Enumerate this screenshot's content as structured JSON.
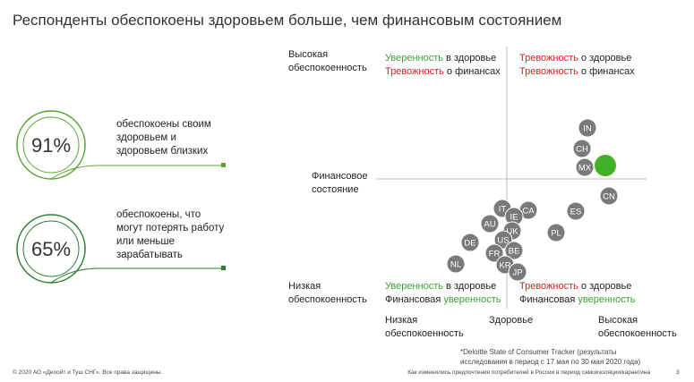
{
  "title": "Респонденты обеспокоены здоровьем больше, чем финансовым состоянием",
  "stats": [
    {
      "value": "91%",
      "lines": [
        "обеспокоены своим",
        "здоровьем и",
        "здоровьем близких"
      ]
    },
    {
      "value": "65%",
      "lines": [
        "обеспокоены, что",
        "могут потерять работу",
        "или меньше",
        "зарабатывать"
      ]
    }
  ],
  "axis_labels": [
    {
      "color": "#e31b23",
      "lines": [
        "Высокая",
        "обеспокоенность"
      ]
    },
    {
      "color": "#3aa335",
      "lines": [
        "Низкая",
        "обеспокоенность"
      ]
    },
    {
      "color": "#222222",
      "lines": [
        "Финансовое",
        "состояние"
      ]
    },
    {
      "color": "#3aa335",
      "lines": [
        "Низкая",
        "обеспокоенность"
      ]
    },
    {
      "color": "#222222",
      "lines": [
        "Здоровье"
      ]
    },
    {
      "color": "#e31b23",
      "lines": [
        "Высокая",
        "обеспокоенность"
      ]
    }
  ],
  "quadrants": [
    {
      "lines": [
        [
          {
            "text": "Уверенность",
            "color": "#3aa335"
          },
          {
            "text": " в здоровье",
            "color": "#222222"
          }
        ],
        [
          {
            "text": "Тревожность",
            "color": "#e31b23"
          },
          {
            "text": " о финансах",
            "color": "#222222"
          }
        ]
      ]
    },
    {
      "lines": [
        [
          {
            "text": "Тревожность",
            "color": "#e31b23"
          },
          {
            "text": " о здоровье",
            "color": "#222222"
          }
        ],
        [
          {
            "text": "Тревожность",
            "color": "#e31b23"
          },
          {
            "text": " о финансах",
            "color": "#222222"
          }
        ]
      ]
    },
    {
      "lines": [
        [
          {
            "text": "Уверенность",
            "color": "#3aa335"
          },
          {
            "text": " в здоровье",
            "color": "#222222"
          }
        ],
        [
          {
            "text": "Финансовая ",
            "color": "#222222"
          },
          {
            "text": "уверенность",
            "color": "#3aa335"
          }
        ]
      ]
    },
    {
      "lines": [
        [
          {
            "text": "Тревожность",
            "color": "#e31b23"
          },
          {
            "text": " о здоровье",
            "color": "#222222"
          }
        ],
        [
          {
            "text": "Финансовая ",
            "color": "#222222"
          },
          {
            "text": "уверенность",
            "color": "#3aa335"
          }
        ]
      ]
    }
  ],
  "countries": [
    "IN",
    "CH",
    "MX",
    "CN",
    "ES",
    "PL",
    "IT",
    "CA",
    "IE",
    "AU",
    "UK",
    "DE",
    "US",
    "BE",
    "FR",
    "KR",
    "JP",
    "NL"
  ],
  "footnote": [
    "*Deloitte State of Consumer Tracker (результаты",
    "исследования в период с 17 мая по 30 мая 2020 года)"
  ],
  "footer_left": "© 2020 АО «Делойт и Туш СНГ». Все права защищены.",
  "footer_right": "Как изменились предпочтения потребителей в России в период самоизоляции/карантина",
  "page_number": "3"
}
